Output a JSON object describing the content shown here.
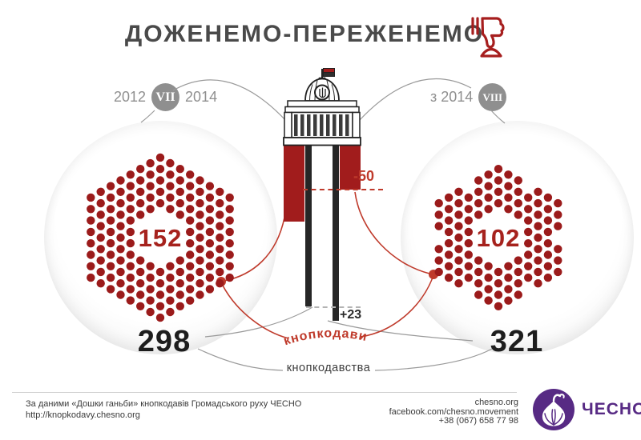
{
  "title": "ДОЖЕНЕМО-ПЕРЕЖЕНЕМО",
  "panels": {
    "left": {
      "period_start": "2012",
      "numeral": "VII",
      "period_end": "2014",
      "knopkodavy": "152",
      "total": "298"
    },
    "right": {
      "period_prefix": "з 2014",
      "numeral": "VIII",
      "knopkodavy": "102",
      "total": "321"
    }
  },
  "deltas": {
    "knopkodavy": "-50",
    "totals": "+23"
  },
  "labels": {
    "knopkodavy": "кнопкодави",
    "totals": "кнопкодавства"
  },
  "footer": {
    "source_line": "За даними «Дошки ганьби» кнопкодавів Громадського руху ЧЕСНО",
    "source_url": "http://knopkodavy.chesno.org",
    "website": "chesno.org",
    "facebook": "facebook.com/chesno.movement",
    "phone": "+38 (067) 658 77 98",
    "logo_text": "ЧЕСНО"
  },
  "icons": {
    "thumbs_down": "thumbs-down-pressing-button-icon",
    "building": "verkhovna-rada-building",
    "garlic": "chesno-garlic-logo"
  },
  "colors": {
    "dark_red": "#9b1b1b",
    "bar_red": "#a11c1c",
    "annotation_red": "#bf3a2b",
    "dark": "#1d1d1d",
    "gray": "#8f8f8f",
    "purple": "#572a84"
  },
  "chart_data": {
    "type": "bar",
    "title": "ДОЖЕНЕМО-ПЕРЕЖЕНЕМО",
    "categories": [
      "VII скликання (2012–2014)",
      "VIII скликання (з 2014)"
    ],
    "series": [
      {
        "name": "кнопкодави",
        "values": [
          152,
          102
        ]
      },
      {
        "name": "кнопкодавства",
        "values": [
          298,
          321
        ]
      }
    ],
    "annotations": [
      {
        "series": "кнопкодави",
        "delta": -50
      },
      {
        "series": "кнопкодавства",
        "delta": 23
      }
    ],
    "legend_position": "none",
    "grid": false
  }
}
